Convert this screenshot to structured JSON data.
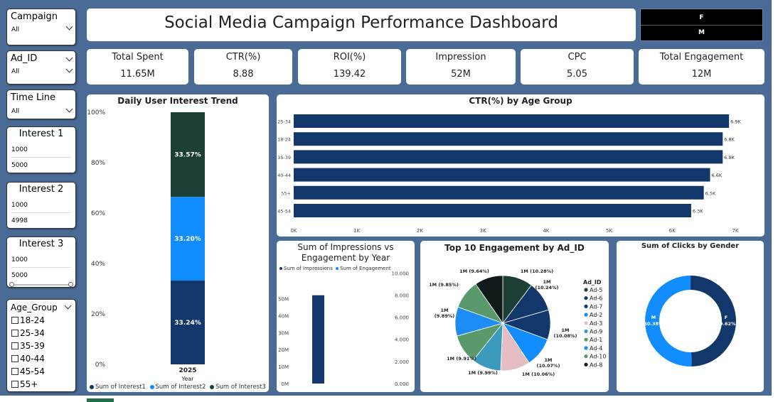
{
  "slicers": {
    "campaign": {
      "title": "Campaign",
      "value": "All"
    },
    "ad_id": {
      "title": "Ad_ID",
      "value": "All"
    },
    "time_line": {
      "title": "Time Line",
      "value": "All"
    },
    "interest1": {
      "title": "Interest 1",
      "min": "1000",
      "max": "5000"
    },
    "interest2": {
      "title": "Interest 2",
      "min": "1000",
      "max": "4998"
    },
    "interest3": {
      "title": "Interest 3",
      "min": "1000",
      "max": "5000"
    },
    "age_group": {
      "title": "Age_Group",
      "items": [
        "18-24",
        "25-34",
        "35-39",
        "40-44",
        "45-54",
        "55+"
      ]
    }
  },
  "gender_filter": {
    "f": "F",
    "m": "M"
  },
  "title": "Social Media Campaign Performance Dashboard",
  "kpis": [
    {
      "label": "Total Spent",
      "value": "11.65M"
    },
    {
      "label": "CTR(%)",
      "value": "8.88"
    },
    {
      "label": "ROI(%)",
      "value": "139.42"
    },
    {
      "label": "Impression",
      "value": "52M"
    },
    {
      "label": "CPC",
      "value": "5.05"
    },
    {
      "label": "Total Engagement",
      "value": "12M"
    }
  ],
  "colors": {
    "navy": "#12386b",
    "blue": "#118dff",
    "dark": "#1b3f37",
    "canvas": "#4a6b95"
  },
  "chart_data": [
    {
      "type": "bar",
      "title": "Daily User Interest Trend",
      "categories": [
        "2025"
      ],
      "xlabel": "Year",
      "y_ticks": [
        "0%",
        "20%",
        "40%",
        "60%",
        "80%",
        "100%"
      ],
      "series": [
        {
          "name": "Sum of Interest1",
          "values": [
            33.24
          ],
          "label": "33.24%"
        },
        {
          "name": "Sum of Interest2",
          "values": [
            33.2
          ],
          "label": "33.20%"
        },
        {
          "name": "Sum of Interest3",
          "values": [
            33.57
          ],
          "label": "33.57%"
        }
      ]
    },
    {
      "type": "bar",
      "title": "CTR(%) by Age Group",
      "categories": [
        "25-34",
        "18-24",
        "35-39",
        "40-44",
        "55+",
        "45-54"
      ],
      "values": [
        6900,
        6800,
        6800,
        6600,
        6500,
        6300
      ],
      "labels": [
        "6.9K",
        "6.8K",
        "6.8K",
        "6.6K",
        "6.5K",
        "6.3K"
      ],
      "x_ticks": [
        "0K",
        "1K",
        "2K",
        "3K",
        "4K",
        "5K",
        "6K",
        "7K"
      ],
      "xlim": [
        0,
        7000
      ]
    },
    {
      "type": "bar",
      "title": "Sum of Impressions vs Engagement by Year",
      "legend": [
        "Sum of Impressions",
        "Sum of Engagement"
      ],
      "values": [
        52000000
      ],
      "y_ticks_left": [
        "0M",
        "10M",
        "20M",
        "30M",
        "40M",
        "50M"
      ],
      "y_ticks_right": [
        "0.000",
        "2.000",
        "4.000",
        "6.000",
        "8.000",
        "10.000"
      ],
      "ylim": [
        0,
        55000000
      ]
    },
    {
      "type": "pie",
      "title": "Top 10 Engagement by Ad_ID",
      "legend_title": "Ad_ID",
      "slices": [
        {
          "name": "Ad-5",
          "value": 10.28,
          "label": "1M (10.28%)"
        },
        {
          "name": "Ad-6",
          "value": 10.24,
          "label": "1M (10.24%)"
        },
        {
          "name": "Ad-7",
          "value": 10.08,
          "label": "1M (10.08%)"
        },
        {
          "name": "Ad-2",
          "value": 10.07,
          "label": "1M (10.07%)"
        },
        {
          "name": "Ad-3",
          "value": 10.06,
          "label": "1M (10.06%)"
        },
        {
          "name": "Ad-9",
          "value": 9.99,
          "label": "1M (9.99%)"
        },
        {
          "name": "Ad-1",
          "value": 9.91,
          "label": "1M (9.91%)"
        },
        {
          "name": "Ad-4",
          "value": 9.89,
          "label": "1M (9.89%)"
        },
        {
          "name": "Ad-10",
          "value": 9.85,
          "label": "1M (9.85%)"
        },
        {
          "name": "Ad-8",
          "value": 9.64,
          "label": "1M (9.64%)"
        }
      ]
    },
    {
      "type": "pie",
      "title": "Sum of Clicks by Gender",
      "slices": [
        {
          "name": "F",
          "value": 49.62,
          "label": "49.62%"
        },
        {
          "name": "M",
          "value": 50.38,
          "label": "50.38%"
        }
      ]
    }
  ]
}
